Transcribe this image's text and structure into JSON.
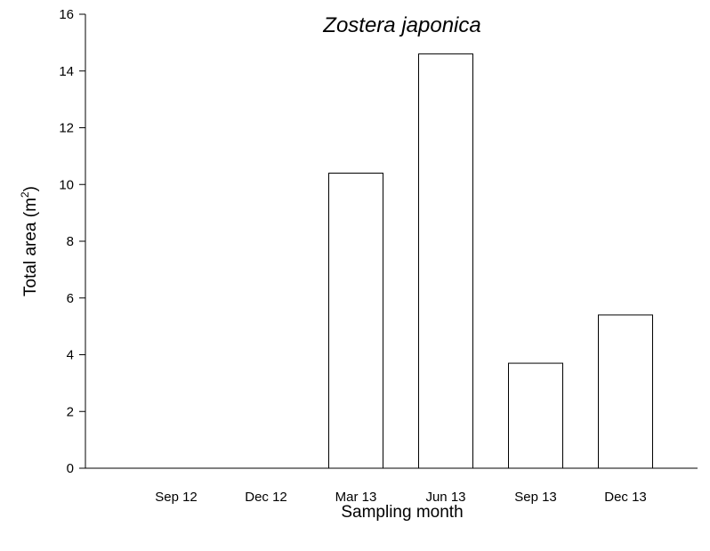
{
  "chart_data": {
    "type": "bar",
    "title": "Zostera japonica",
    "xlabel": "Sampling month",
    "ylabel_main": "Total area (m",
    "ylabel_sup": "2",
    "ylabel_end": ")",
    "categories": [
      "Sep 12",
      "Dec 12",
      "Mar 13",
      "Jun 13",
      "Sep 13",
      "Dec 13"
    ],
    "values": [
      0,
      0,
      10.4,
      14.6,
      3.7,
      5.4
    ],
    "ylim": [
      0,
      16
    ],
    "yticks": [
      0,
      2,
      4,
      6,
      8,
      10,
      12,
      14,
      16
    ],
    "grid": false,
    "bar_fill": "#ffffff",
    "bar_stroke": "#000000"
  }
}
